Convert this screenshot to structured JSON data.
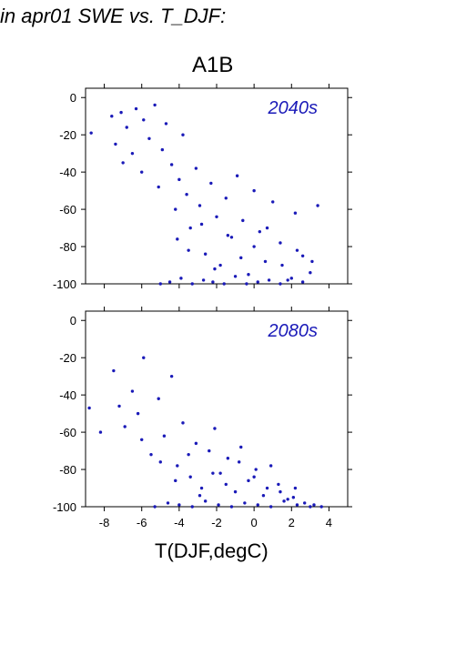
{
  "page": {
    "title": "in apr01 SWE vs. T_DJF:",
    "scenario": "A1B"
  },
  "chart_data": [
    {
      "type": "scatter",
      "label": "2040s",
      "xlabel": "",
      "ylabel": "",
      "xlim": [
        -9,
        5
      ],
      "ylim": [
        -100,
        5
      ],
      "yticks": [
        0,
        -20,
        -40,
        -60,
        -80,
        -100
      ],
      "xticks": [
        -8,
        -6,
        -4,
        -2,
        0,
        2,
        4
      ],
      "marker_color": "#1a1ab8",
      "x": [
        -8.7,
        -7.6,
        -7.4,
        -7.1,
        -7.0,
        -6.8,
        -6.5,
        -6.3,
        -6.0,
        -5.9,
        -5.6,
        -5.3,
        -5.1,
        -4.9,
        -4.7,
        -4.4,
        -4.2,
        -4.0,
        -3.8,
        -3.6,
        -3.4,
        -3.1,
        -2.9,
        -2.6,
        -2.3,
        -2.0,
        -1.8,
        -1.5,
        -1.2,
        -0.9,
        -0.6,
        -0.3,
        0.0,
        0.3,
        0.6,
        1.0,
        1.4,
        1.8,
        2.2,
        2.6,
        3.0,
        3.4,
        -5.0,
        -4.5,
        -3.9,
        -3.3,
        -2.7,
        -2.2,
        -1.6,
        -1.0,
        -0.4,
        0.2,
        0.8,
        1.4,
        2.0,
        2.6,
        -4.1,
        -3.5,
        -2.8,
        -2.1,
        -1.4,
        -0.7,
        0.0,
        0.7,
        1.5,
        2.3,
        3.1
      ],
      "y": [
        -19,
        -10,
        -25,
        -8,
        -35,
        -16,
        -30,
        -6,
        -40,
        -12,
        -22,
        -4,
        -48,
        -28,
        -14,
        -36,
        -60,
        -44,
        -20,
        -52,
        -70,
        -38,
        -58,
        -84,
        -46,
        -64,
        -90,
        -54,
        -75,
        -42,
        -66,
        -95,
        -50,
        -72,
        -88,
        -56,
        -78,
        -98,
        -62,
        -85,
        -94,
        -58,
        -100,
        -99,
        -97,
        -100,
        -98,
        -99,
        -100,
        -96,
        -100,
        -99,
        -98,
        -100,
        -97,
        -99,
        -76,
        -82,
        -68,
        -92,
        -74,
        -86,
        -80,
        -70,
        -90,
        -82,
        -88
      ]
    },
    {
      "type": "scatter",
      "label": "2080s",
      "xlabel": "T(DJF,degC)",
      "ylabel": "",
      "xlim": [
        -9,
        5
      ],
      "ylim": [
        -100,
        5
      ],
      "yticks": [
        0,
        -20,
        -40,
        -60,
        -80,
        -100
      ],
      "xticks": [
        -8,
        -6,
        -4,
        -2,
        0,
        2,
        4
      ],
      "marker_color": "#1a1ab8",
      "x": [
        -8.8,
        -8.2,
        -7.5,
        -7.2,
        -6.9,
        -6.5,
        -6.2,
        -5.9,
        -5.5,
        -5.1,
        -4.8,
        -4.4,
        -4.1,
        -3.8,
        -3.4,
        -3.1,
        -2.8,
        -2.4,
        -2.1,
        -1.8,
        -1.4,
        -1.0,
        -0.7,
        -0.3,
        0.1,
        0.5,
        0.9,
        1.3,
        1.8,
        2.2,
        2.7,
        3.2,
        3.6,
        -5.3,
        -4.6,
        -4.0,
        -3.3,
        -2.6,
        -1.9,
        -1.2,
        -0.5,
        0.2,
        0.9,
        1.6,
        2.3,
        3.0,
        -6.0,
        -5.0,
        -4.2,
        -3.5,
        -2.9,
        -2.2,
        -1.5,
        -0.8,
        0.0,
        0.7,
        1.4,
        2.1
      ],
      "y": [
        -47,
        -60,
        -27,
        -46,
        -57,
        -38,
        -50,
        -20,
        -72,
        -42,
        -62,
        -30,
        -78,
        -55,
        -84,
        -66,
        -90,
        -70,
        -58,
        -82,
        -74,
        -92,
        -68,
        -86,
        -80,
        -94,
        -78,
        -88,
        -96,
        -90,
        -98,
        -99,
        -100,
        -100,
        -98,
        -99,
        -100,
        -97,
        -99,
        -100,
        -98,
        -99,
        -100,
        -97,
        -99,
        -100,
        -64,
        -76,
        -86,
        -72,
        -94,
        -82,
        -88,
        -76,
        -84,
        -90,
        -92,
        -95
      ]
    }
  ]
}
